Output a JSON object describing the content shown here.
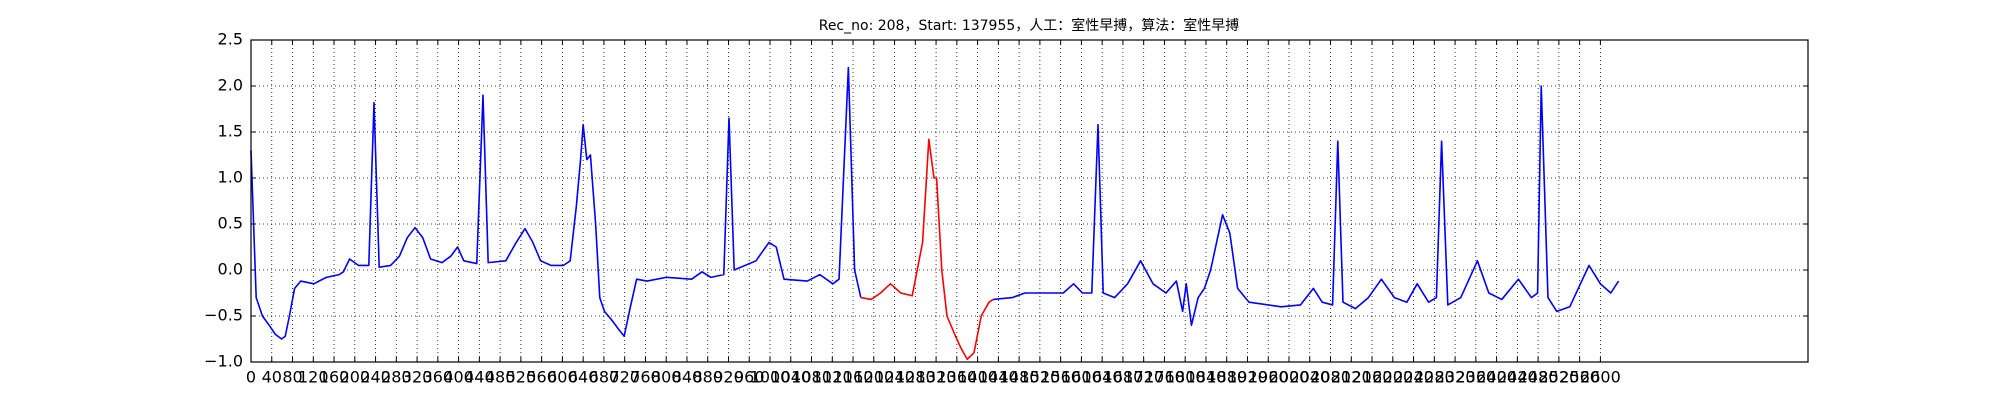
{
  "chart_data": {
    "type": "line",
    "title": "Rec_no: 208，Start: 137955，人工：室性早搏，算法：室性早搏",
    "xlim": [
      0,
      3000
    ],
    "ylim": [
      -1,
      2.5
    ],
    "xticks": [
      0,
      40,
      80,
      120,
      160,
      200,
      240,
      280,
      320,
      360,
      400,
      440,
      480,
      520,
      560,
      600,
      640,
      680,
      720,
      760,
      800,
      840,
      880,
      920,
      960,
      1000,
      1040,
      1080,
      1120,
      1160,
      1200,
      1240,
      1280,
      1320,
      1360,
      1400,
      1440,
      1480,
      1520,
      1560,
      1600,
      1640,
      1680,
      1720,
      1760,
      1800,
      1840,
      1880,
      1920,
      1960,
      2000,
      2040,
      2080,
      2120,
      2160,
      2200,
      2240,
      2280,
      2320,
      2360,
      2400,
      2440,
      2480,
      2520,
      2560,
      2600
    ],
    "yticks": [
      {
        "value": -1,
        "label": "−1.0"
      },
      {
        "value": -0.5,
        "label": "−0.5"
      },
      {
        "value": 0,
        "label": "0.0"
      },
      0.5,
      {
        "value": 1,
        "label": "1.0"
      },
      1.5,
      {
        "value": 2,
        "label": "2.0"
      },
      2.5
    ],
    "grid": true,
    "series": [
      {
        "color": "#0000ff",
        "x": [
          0,
          10,
          22,
          35,
          47,
          59,
          66,
          74,
          84,
          96,
          121,
          145,
          170,
          178,
          190,
          207,
          227,
          237,
          247,
          269,
          286,
          301,
          316,
          331,
          346,
          368,
          385,
          398,
          410,
          435,
          447,
          457,
          491,
          511,
          528,
          543,
          558,
          578,
          602,
          615,
          627,
          635,
          640,
          647,
          654,
          664,
          672,
          681,
          696,
          709,
          719,
          731,
          743,
          763,
          800,
          849,
          869,
          886,
          911,
          921,
          931,
          973,
          998,
          1012,
          1027,
          1072,
          1096,
          1121,
          1133,
          1151,
          1163,
          1175
        ],
        "values": [
          1.3,
          -0.3,
          -0.5,
          -0.6,
          -0.7,
          -0.75,
          -0.72,
          -0.5,
          -0.2,
          -0.12,
          -0.15,
          -0.08,
          -0.05,
          -0.02,
          0.12,
          0.05,
          0.05,
          1.82,
          0.03,
          0.05,
          0.15,
          0.35,
          0.46,
          0.35,
          0.12,
          0.08,
          0.15,
          0.25,
          0.1,
          0.07,
          1.9,
          0.08,
          0.1,
          0.3,
          0.45,
          0.3,
          0.1,
          0.05,
          0.05,
          0.1,
          0.7,
          1.2,
          1.58,
          1.2,
          1.25,
          0.5,
          -0.3,
          -0.45,
          -0.55,
          -0.65,
          -0.72,
          -0.4,
          -0.1,
          -0.12,
          -0.08,
          -0.1,
          -0.02,
          -0.08,
          -0.05,
          1.65,
          0.0,
          0.1,
          0.3,
          0.25,
          -0.1,
          -0.12,
          -0.05,
          -0.15,
          -0.1,
          2.2,
          0.0,
          -0.3
        ]
      },
      {
        "color": "#ff0000",
        "x": [
          1175,
          1195,
          1213,
          1232,
          1252,
          1274,
          1294,
          1306,
          1316,
          1321,
          1331,
          1341,
          1356,
          1368,
          1380,
          1393,
          1407,
          1422,
          1430
        ],
        "values": [
          -0.3,
          -0.32,
          -0.25,
          -0.15,
          -0.25,
          -0.28,
          0.3,
          1.42,
          1.0,
          1.0,
          0.0,
          -0.5,
          -0.7,
          -0.85,
          -0.97,
          -0.9,
          -0.5,
          -0.35,
          -0.32
        ]
      },
      {
        "color": "#0000ff",
        "x": [
          1430,
          1467,
          1491,
          1565,
          1585,
          1602,
          1620,
          1632,
          1642,
          1664,
          1689,
          1714,
          1738,
          1763,
          1783,
          1795,
          1802,
          1812,
          1825,
          1837,
          1849,
          1872,
          1886,
          1901,
          1923,
          1985,
          2022,
          2047,
          2064,
          2084,
          2094,
          2104,
          2128,
          2153,
          2178,
          2203,
          2227,
          2247,
          2269,
          2284,
          2294,
          2306,
          2331,
          2363,
          2385,
          2410,
          2442,
          2467,
          2479,
          2486,
          2499,
          2516,
          2541,
          2578,
          2600,
          2620,
          2635
        ],
        "values": [
          -0.32,
          -0.3,
          -0.25,
          -0.25,
          -0.15,
          -0.25,
          -0.25,
          1.58,
          -0.25,
          -0.3,
          -0.15,
          0.1,
          -0.15,
          -0.25,
          -0.12,
          -0.45,
          -0.15,
          -0.6,
          -0.3,
          -0.2,
          0.0,
          0.6,
          0.4,
          -0.2,
          -0.35,
          -0.4,
          -0.38,
          -0.2,
          -0.35,
          -0.38,
          1.4,
          -0.35,
          -0.42,
          -0.3,
          -0.1,
          -0.3,
          -0.35,
          -0.15,
          -0.35,
          -0.3,
          1.4,
          -0.38,
          -0.3,
          0.1,
          -0.25,
          -0.32,
          -0.1,
          -0.3,
          -0.25,
          2.0,
          -0.3,
          -0.45,
          -0.4,
          0.05,
          -0.15,
          -0.25,
          -0.12
        ]
      }
    ]
  }
}
